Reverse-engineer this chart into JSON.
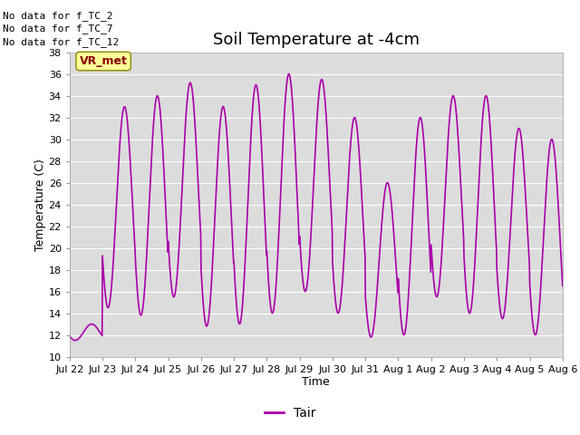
{
  "title": "Soil Temperature at -4cm",
  "xlabel": "Time",
  "ylabel": "Temperature (C)",
  "ylim": [
    10,
    38
  ],
  "yticks": [
    10,
    12,
    14,
    16,
    18,
    20,
    22,
    24,
    26,
    28,
    30,
    32,
    34,
    36,
    38
  ],
  "line_color": "#AA00AA",
  "line_width": 1.2,
  "legend_label": "Tair",
  "background_color": "#DCDCDC",
  "annotations": [
    "No data for f_TC_2",
    "No data for f_TC_7",
    "No data for f_TC_12"
  ],
  "annotation_box_label": "VR_met",
  "xtick_labels": [
    "Jul 22",
    "Jul 23",
    "Jul 24",
    "Jul 25",
    "Jul 26",
    "Jul 27",
    "Jul 28",
    "Jul 29",
    "Jul 30",
    "Jul 31",
    "Aug 1",
    "Aug 2",
    "Aug 3",
    "Aug 4",
    "Aug 5",
    "Aug 6"
  ],
  "num_days": 15,
  "title_fontsize": 13,
  "daily_peaks": [
    13.0,
    33.0,
    34.0,
    35.2,
    33.0,
    35.0,
    36.0,
    35.5,
    32.0,
    26.0,
    32.0,
    34.0,
    34.0,
    31.0,
    30.0,
    16.5
  ],
  "daily_mins": [
    11.5,
    14.5,
    13.8,
    15.5,
    12.8,
    13.0,
    14.0,
    16.0,
    14.0,
    11.8,
    12.0,
    15.5,
    14.0,
    13.5,
    12.0,
    16.5
  ]
}
